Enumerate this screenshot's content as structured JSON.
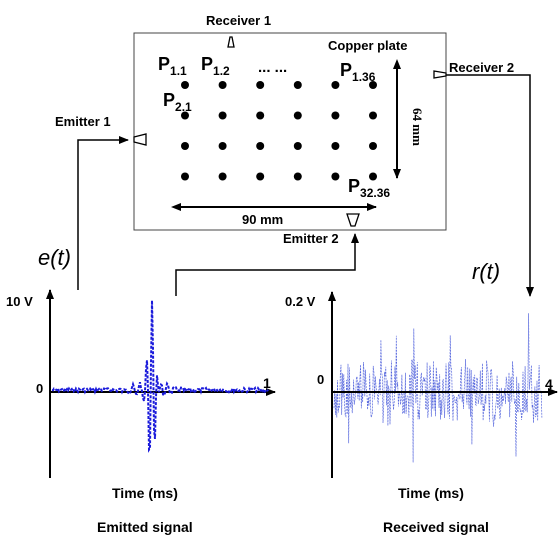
{
  "plate": {
    "label": "Copper plate",
    "width_label": "90 mm",
    "height_label": "64 mm",
    "points": {
      "p1_1": {
        "main": "P",
        "sub": "1.1"
      },
      "p1_2": {
        "main": "P",
        "sub": "1.2"
      },
      "dots": "... ...",
      "p1_36": {
        "main": "P",
        "sub": "1.36"
      },
      "p2_1": {
        "main": "P",
        "sub": "2.1"
      },
      "p32_36": {
        "main": "P",
        "sub": "32.36"
      }
    },
    "grid": {
      "rows": 4,
      "cols": 6
    }
  },
  "transducers": {
    "receiver1": "Receiver 1",
    "receiver2": "Receiver 2",
    "emitter1": "Emitter 1",
    "emitter2": "Emitter 2"
  },
  "signals": {
    "emitted": {
      "symbol": "e(t)",
      "y_max_label": "10 V",
      "origin_label": "0",
      "x_end_label": "1",
      "x_axis_label": "Time (ms)",
      "caption": "Emitted signal",
      "color": "#1a1adb"
    },
    "received": {
      "symbol": "r(t)",
      "y_max_label": "0.2 V",
      "origin_label": "0",
      "x_end_label": "4",
      "x_axis_label": "Time (ms)",
      "caption": "Received signal",
      "color": "#5566dd"
    }
  }
}
